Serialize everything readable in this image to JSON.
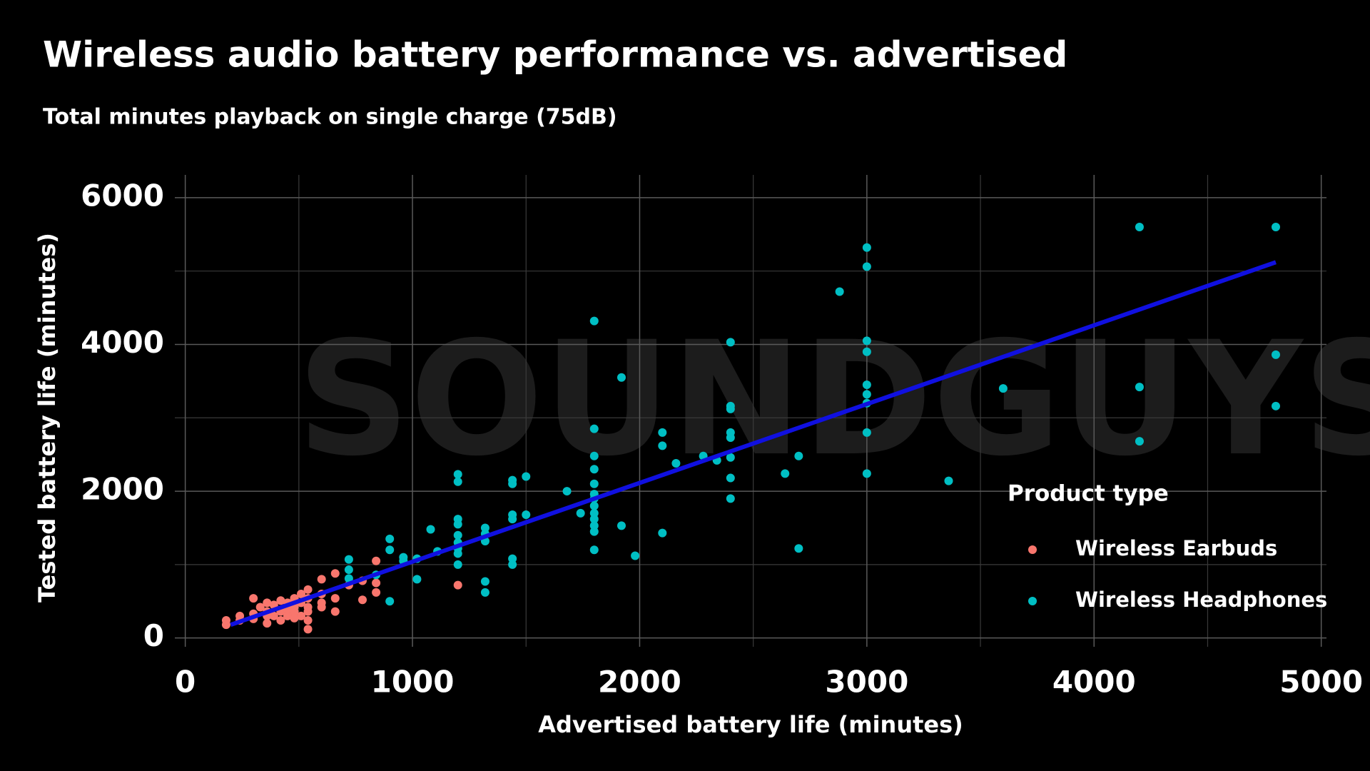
{
  "chart_data": {
    "type": "scatter",
    "title": "Wireless audio battery performance vs. advertised",
    "subtitle": "Total minutes playback on single charge (75dB)",
    "x_label": "Advertised battery life (minutes)",
    "y_label": "Tested battery life (minutes)",
    "watermark": "SOUNDGUYS",
    "legend_title": "Product type",
    "legend_position": "right",
    "grid": true,
    "xlim": [
      -46,
      5023
    ],
    "ylim": [
      -120,
      6310
    ],
    "xticks": [
      0,
      1000,
      2000,
      3000,
      4000,
      5000
    ],
    "yticks": [
      0,
      2000,
      4000,
      6000
    ],
    "xminor_ticks": [
      500,
      1500,
      2500,
      3500,
      4500
    ],
    "yminor_ticks": [
      1000,
      3000,
      5000
    ],
    "series": [
      {
        "name": "Wireless Earbuds",
        "color": "#f8766d",
        "x": [
          180,
          180,
          240,
          240,
          300,
          300,
          300,
          330,
          360,
          360,
          360,
          360,
          390,
          390,
          420,
          420,
          420,
          450,
          450,
          450,
          480,
          480,
          480,
          480,
          510,
          510,
          510,
          540,
          540,
          540,
          540,
          540,
          540,
          600,
          600,
          600,
          600,
          660,
          660,
          660,
          720,
          780,
          780,
          840,
          840,
          840,
          1200
        ],
        "values": [
          240,
          180,
          300,
          240,
          330,
          540,
          260,
          420,
          480,
          360,
          300,
          200,
          450,
          300,
          510,
          360,
          240,
          480,
          390,
          300,
          540,
          420,
          360,
          270,
          600,
          480,
          300,
          660,
          540,
          420,
          360,
          240,
          120,
          800,
          600,
          480,
          420,
          880,
          540,
          360,
          720,
          780,
          520,
          1050,
          750,
          620,
          720
        ]
      },
      {
        "name": "Wireless Headphones",
        "color": "#00bfc4",
        "x": [
          720,
          720,
          720,
          840,
          900,
          900,
          900,
          960,
          960,
          1020,
          1020,
          1080,
          1110,
          1200,
          1200,
          1200,
          1200,
          1200,
          1200,
          1200,
          1200,
          1200,
          1320,
          1320,
          1320,
          1320,
          1320,
          1440,
          1440,
          1440,
          1440,
          1440,
          1440,
          1500,
          1500,
          1680,
          1740,
          1800,
          1800,
          1800,
          1800,
          1800,
          1800,
          1800,
          1800,
          1800,
          1800,
          1800,
          1800,
          1800,
          1920,
          1920,
          1980,
          2100,
          2100,
          2100,
          2160,
          2280,
          2340,
          2400,
          2400,
          2400,
          2400,
          2400,
          2400,
          2400,
          2400,
          2640,
          2700,
          2700,
          2880,
          3000,
          3000,
          3000,
          3000,
          3000,
          3000,
          3000,
          3000,
          3000,
          3360,
          3600,
          4200,
          4200,
          4200,
          4800,
          4800,
          4800
        ],
        "values": [
          1070,
          930,
          810,
          860,
          1350,
          1200,
          500,
          1100,
          1050,
          1080,
          800,
          1480,
          1180,
          2230,
          2130,
          1620,
          1550,
          1400,
          1300,
          1220,
          1150,
          1000,
          1500,
          1420,
          1320,
          770,
          620,
          2150,
          2100,
          1680,
          1620,
          1080,
          1000,
          2200,
          1680,
          2000,
          1700,
          4320,
          2850,
          2480,
          2300,
          2100,
          1960,
          1900,
          1800,
          1700,
          1620,
          1530,
          1450,
          1200,
          3550,
          1530,
          1120,
          2800,
          2620,
          1430,
          2380,
          2480,
          2420,
          4030,
          3160,
          3120,
          2800,
          2730,
          2460,
          2180,
          1900,
          2240,
          2480,
          1220,
          4720,
          5320,
          5060,
          4050,
          3900,
          3450,
          3320,
          3200,
          2800,
          2240,
          2140,
          3400,
          5600,
          3420,
          2680,
          5600,
          3860,
          3160
        ]
      }
    ],
    "trend_line": {
      "color": "#1010e0",
      "x": [
        200,
        4800
      ],
      "values": [
        180,
        5120
      ]
    }
  }
}
